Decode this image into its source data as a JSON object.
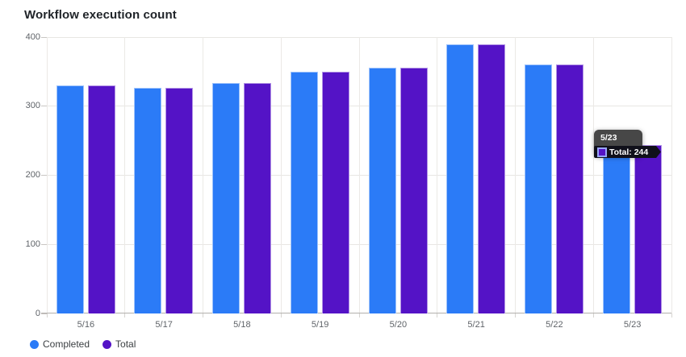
{
  "chart_data": {
    "type": "bar",
    "title": "Workflow execution count",
    "categories": [
      "5/16",
      "5/17",
      "5/18",
      "5/19",
      "5/20",
      "5/21",
      "5/22",
      "5/23"
    ],
    "series": [
      {
        "name": "Completed",
        "color": "#2B7BF7",
        "values": [
          330,
          327,
          333,
          350,
          356,
          390,
          360,
          230
        ]
      },
      {
        "name": "Total",
        "color": "#5413C6",
        "values": [
          330,
          327,
          333,
          350,
          356,
          390,
          360,
          244
        ]
      }
    ],
    "ylim": [
      0,
      400
    ],
    "yticks": [
      0,
      100,
      200,
      300,
      400
    ],
    "grid": true,
    "legend_position": "bottom-left",
    "xlabel": "",
    "ylabel": ""
  },
  "tooltip": {
    "date": "5/23",
    "row_text": "Total: 244",
    "swatch_fill": "#5413C6",
    "swatch_border": "#98A5F8",
    "background": "#474747",
    "row_background": "#10101A"
  },
  "colors": {
    "grid": "#e8e6e3",
    "axis_line": "#b3b0ad",
    "axis_text": "#5f6368",
    "title_text": "#1f2328"
  }
}
